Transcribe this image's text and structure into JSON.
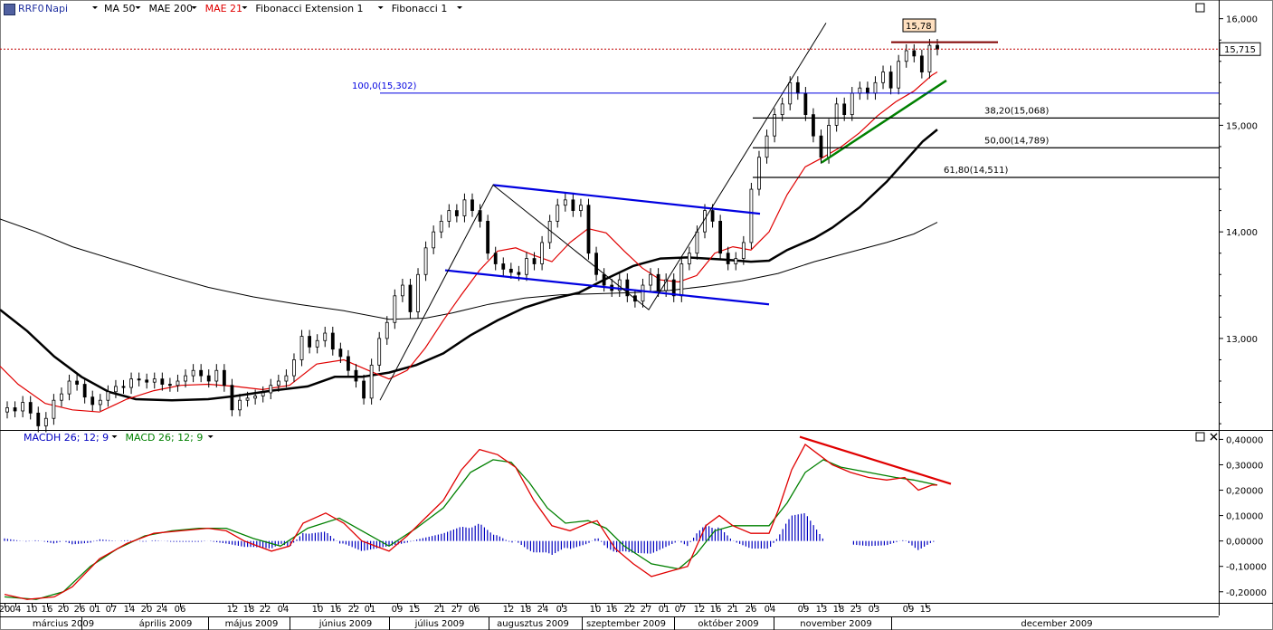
{
  "toolbar": {
    "symbol": "RRF0",
    "period": "Napi",
    "indicators": [
      "MA 50",
      "MAE 200",
      "MAE 21",
      "Fibonacci Extension 1",
      "Fibonacci 1"
    ],
    "indicator_colors": [
      "#000000",
      "#000000",
      "#e00000",
      "#000000",
      "#000000"
    ]
  },
  "macd_toolbar": {
    "indicators": [
      "MACDH 26; 12; 9",
      "MACD 26; 12; 9"
    ],
    "indicator_colors": [
      "#0000c0",
      "#008000"
    ]
  },
  "colors": {
    "price_line": "#e00000",
    "channel": "#0000e0",
    "fib": "#000000",
    "trend_green": "#008000",
    "trend_red": "#e00000",
    "hist": "#0000c0"
  },
  "chart_data": [
    {
      "type": "line",
      "name": "price",
      "ylim": [
        12150,
        16150
      ],
      "yticks": [
        13000,
        14000,
        15000,
        16000
      ],
      "ytick_labels": [
        "13,000",
        "14,000",
        "15,000",
        "16,000"
      ],
      "last_price_label": "15,715",
      "last_price": 15715,
      "candle_label": "15,78",
      "fib_extension": {
        "label": "100,0(15,302)",
        "value": 15302
      },
      "fib_levels": [
        {
          "label": "38,20(15,068)",
          "value": 15068
        },
        {
          "label": "50,00(14,789)",
          "value": 14789
        },
        {
          "label": "61,80(14,511)",
          "value": 14511
        }
      ]
    },
    {
      "type": "line",
      "name": "macd",
      "ylim": [
        -0.24,
        0.43
      ],
      "yticks": [
        -0.2,
        -0.1,
        0.0,
        0.1,
        0.2,
        0.3,
        0.4
      ],
      "ytick_labels": [
        "-0,20000",
        "-0,10000",
        "0,00000",
        "0,10000",
        "0,20000",
        "0,30000",
        "0,40000"
      ]
    }
  ],
  "x_axis": {
    "days": [
      "20",
      "04",
      "10",
      "16",
      "20",
      "26",
      "01",
      "07",
      "14",
      "20",
      "24",
      "06",
      "12",
      "18",
      "22",
      "04",
      "10",
      "16",
      "22",
      "01",
      "09",
      "15",
      "21",
      "27",
      "06",
      "12",
      "18",
      "24",
      "03",
      "10",
      "16",
      "22",
      "27",
      "01",
      "07",
      "12",
      "16",
      "21",
      "26",
      "04",
      "09",
      "13",
      "18",
      "23",
      "03",
      "09",
      "15"
    ],
    "months": [
      "március 2009",
      "április 2009",
      "május 2009",
      "június 2009",
      "július 2009",
      "augusztus 2009",
      "szeptember 2009",
      "október 2009",
      "november 2009",
      "december 2009"
    ]
  }
}
